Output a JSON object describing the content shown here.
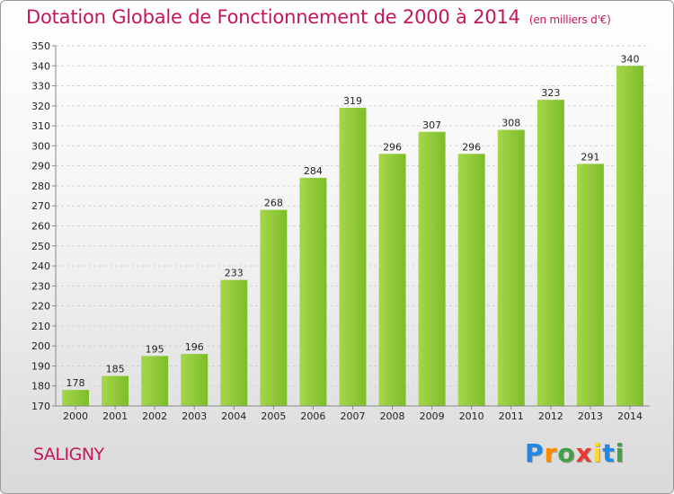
{
  "title": "Dotation Globale de Fonctionnement de 2000 à 2014",
  "unit": "(en milliers d'€)",
  "commune": "SALIGNY",
  "logo": {
    "text": "Proxiti",
    "letters": [
      {
        "ch": "P",
        "color": "#1e88e5"
      },
      {
        "ch": "r",
        "color": "#fb8c00"
      },
      {
        "ch": "o",
        "color": "#43a047"
      },
      {
        "ch": "x",
        "color": "#e53935"
      },
      {
        "ch": "i",
        "color": "#fdd835"
      },
      {
        "ch": "t",
        "color": "#1e88e5"
      },
      {
        "ch": "i",
        "color": "#43a047"
      }
    ]
  },
  "colors": {
    "bar": "#7cbd2a",
    "bar_light": "#a6d64a",
    "title": "#c2185b"
  },
  "chart_data": {
    "type": "bar",
    "categories": [
      "2000",
      "2001",
      "2002",
      "2003",
      "2004",
      "2005",
      "2006",
      "2007",
      "2008",
      "2009",
      "2010",
      "2011",
      "2012",
      "2013",
      "2014"
    ],
    "values": [
      178,
      185,
      195,
      196,
      233,
      268,
      284,
      319,
      296,
      307,
      296,
      308,
      323,
      291,
      340
    ],
    "xlabel": "",
    "ylabel": "",
    "ylim": [
      170,
      350
    ],
    "yticks": [
      170,
      180,
      190,
      200,
      210,
      220,
      230,
      240,
      250,
      260,
      270,
      280,
      290,
      300,
      310,
      320,
      330,
      340,
      350
    ],
    "grid": true
  }
}
